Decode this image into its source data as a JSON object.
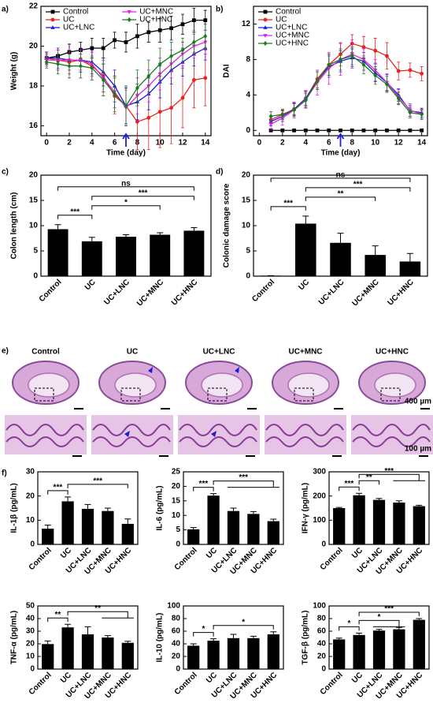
{
  "chart_data": [
    {
      "panel": "a)",
      "type": "line",
      "xlabel": "Time (day)",
      "ylabel": "Weight (g)",
      "x": [
        0,
        1,
        2,
        3,
        4,
        5,
        6,
        7,
        8,
        9,
        10,
        11,
        12,
        13,
        14
      ],
      "xlim": [
        -0.5,
        14.5
      ],
      "xticks": [
        0,
        2,
        4,
        6,
        8,
        10,
        12,
        14
      ],
      "ylim": [
        15.5,
        22
      ],
      "yticks": [
        16,
        18,
        20,
        22
      ],
      "legend": "top",
      "series": [
        {
          "name": "Control",
          "color": "#000000",
          "marker": "square",
          "values": [
            19.4,
            19.5,
            19.7,
            19.8,
            19.9,
            19.9,
            20.3,
            20.2,
            20.5,
            20.7,
            20.8,
            20.9,
            21.1,
            21.3,
            21.3
          ],
          "errors": [
            0.3,
            0.3,
            0.4,
            0.4,
            0.5,
            0.5,
            0.4,
            0.5,
            0.6,
            0.5,
            0.6,
            0.6,
            0.5,
            0.6,
            0.5
          ]
        },
        {
          "name": "UC",
          "color": "#e8221e",
          "marker": "circle",
          "values": [
            19.4,
            19.3,
            19.2,
            19.3,
            19.0,
            18.5,
            17.5,
            17.0,
            16.2,
            16.4,
            16.7,
            16.9,
            17.4,
            18.3,
            18.4
          ],
          "errors": [
            0.3,
            0.5,
            0.6,
            0.6,
            0.7,
            0.8,
            0.9,
            1.0,
            1.4,
            1.6,
            1.8,
            1.8,
            1.5,
            1.4,
            1.4
          ]
        },
        {
          "name": "UC+LNC",
          "color": "#1c1cd6",
          "marker": "triangle-up",
          "values": [
            19.4,
            19.4,
            19.3,
            19.3,
            19.2,
            18.7,
            18.0,
            17.0,
            17.2,
            17.6,
            18.2,
            18.8,
            19.2,
            19.6,
            19.9
          ],
          "errors": [
            0.3,
            0.5,
            0.5,
            0.6,
            0.6,
            0.7,
            0.8,
            0.9,
            0.9,
            0.8,
            0.8,
            0.7,
            0.7,
            0.6,
            0.6
          ]
        },
        {
          "name": "UC+MNC",
          "color": "#e020e0",
          "marker": "triangle-down",
          "values": [
            19.3,
            19.3,
            19.3,
            19.3,
            19.1,
            18.4,
            17.7,
            16.9,
            17.5,
            18.0,
            18.6,
            19.1,
            19.6,
            20.0,
            20.2
          ],
          "errors": [
            0.3,
            0.5,
            0.5,
            0.5,
            0.6,
            0.7,
            0.8,
            0.9,
            0.9,
            0.8,
            0.8,
            0.7,
            0.6,
            0.6,
            0.6
          ]
        },
        {
          "name": "UC+HNC",
          "color": "#1a7a1a",
          "marker": "diamond",
          "values": [
            19.2,
            19.1,
            19.0,
            19.0,
            18.9,
            18.3,
            17.6,
            17.0,
            17.9,
            18.5,
            19.1,
            19.5,
            19.8,
            20.2,
            20.5
          ],
          "errors": [
            0.3,
            0.5,
            0.6,
            0.6,
            0.6,
            0.8,
            0.9,
            1.0,
            0.9,
            0.8,
            0.8,
            0.7,
            0.6,
            0.6,
            0.6
          ]
        }
      ]
    },
    {
      "panel": "b)",
      "type": "line",
      "xlabel": "Time (day)",
      "ylabel": "DAI",
      "x": [
        1,
        2,
        3,
        4,
        5,
        6,
        7,
        8,
        9,
        10,
        11,
        12,
        13,
        14
      ],
      "xlim": [
        -0.5,
        14.5
      ],
      "xticks": [
        0,
        2,
        4,
        6,
        8,
        10,
        12,
        14
      ],
      "ylim": [
        -0.6,
        14
      ],
      "yticks": [
        0,
        4,
        8,
        12
      ],
      "legend": "upper left",
      "series": [
        {
          "name": "Control",
          "color": "#000000",
          "marker": "square",
          "values": [
            0,
            0,
            0,
            0,
            0,
            0,
            0,
            0,
            0,
            0,
            0,
            0,
            0,
            0
          ]
        },
        {
          "name": "UC",
          "color": "#e8221e",
          "marker": "circle",
          "values": [
            1.2,
            1.8,
            2.4,
            3.6,
            5.8,
            7.4,
            8.6,
            9.8,
            9.4,
            9.0,
            8.4,
            6.7,
            6.8,
            6.4
          ],
          "errors": [
            0.4,
            0.5,
            0.6,
            0.8,
            1.0,
            1.2,
            1.3,
            1.0,
            1.2,
            1.4,
            1.5,
            1.0,
            0.8,
            0.8
          ]
        },
        {
          "name": "UC+LNC",
          "color": "#1c1cd6",
          "marker": "triangle-up",
          "values": [
            1.0,
            1.6,
            2.4,
            3.6,
            5.6,
            7.2,
            7.8,
            8.2,
            7.8,
            6.5,
            5.4,
            4.0,
            2.2,
            2.0
          ],
          "errors": [
            0.5,
            0.6,
            0.7,
            0.8,
            1.0,
            1.2,
            1.2,
            1.0,
            1.0,
            1.0,
            0.9,
            0.7,
            0.6,
            0.5
          ]
        },
        {
          "name": "UC+MNC",
          "color": "#e020e0",
          "marker": "triangle-down",
          "values": [
            0.7,
            1.4,
            2.3,
            3.5,
            5.4,
            7.0,
            8.0,
            8.6,
            8.0,
            6.8,
            5.4,
            3.8,
            2.3,
            1.8
          ],
          "errors": [
            0.6,
            0.8,
            0.9,
            1.0,
            1.4,
            1.8,
            1.8,
            1.6,
            1.2,
            1.2,
            1.0,
            0.8,
            0.7,
            0.6
          ]
        },
        {
          "name": "UC+HNC",
          "color": "#1a7a1a",
          "marker": "diamond",
          "values": [
            1.6,
            1.8,
            2.3,
            3.4,
            5.6,
            7.4,
            8.0,
            8.4,
            7.4,
            6.2,
            5.2,
            3.6,
            2.0,
            1.8
          ],
          "errors": [
            0.5,
            0.6,
            0.7,
            0.8,
            1.0,
            1.2,
            1.2,
            1.0,
            1.0,
            1.0,
            0.9,
            0.7,
            0.6,
            0.5
          ]
        }
      ]
    },
    {
      "panel": "c)",
      "type": "bar",
      "ylabel": "Colon length (cm)",
      "color": "#000000",
      "categories": [
        "Control",
        "UC",
        "UC+LNC",
        "UC+MNC",
        "UC+HNC"
      ],
      "values": [
        9.3,
        6.9,
        7.8,
        8.2,
        9.0
      ],
      "errors": [
        0.9,
        0.8,
        0.4,
        0.4,
        0.6
      ],
      "ylim": [
        0,
        20
      ],
      "yticks": [
        0,
        5,
        10,
        15,
        20
      ],
      "brackets": [
        {
          "text": "***",
          "between": [
            "Control",
            "UC"
          ]
        },
        {
          "text": "*",
          "between": [
            "UC",
            "UC+MNC"
          ]
        },
        {
          "text": "***",
          "between": [
            "UC",
            "UC+HNC"
          ]
        },
        {
          "text": "ns",
          "between": [
            "Control",
            "UC+HNC"
          ]
        }
      ]
    },
    {
      "panel": "d)",
      "type": "bar",
      "ylabel": "Colonic damage score",
      "color": "#000000",
      "categories": [
        "Control",
        "UC",
        "UC+LNC",
        "UC+MNC",
        "UC+HNC"
      ],
      "values": [
        0.1,
        10.4,
        6.6,
        4.2,
        2.9
      ],
      "errors": [
        0,
        1.5,
        1.9,
        1.8,
        1.6
      ],
      "ylim": [
        0,
        20
      ],
      "yticks": [
        0,
        5,
        10,
        15,
        20
      ],
      "brackets": [
        {
          "text": "***",
          "between": [
            "Control",
            "UC"
          ]
        },
        {
          "text": "**",
          "between": [
            "UC",
            "UC+MNC"
          ]
        },
        {
          "text": "***",
          "between": [
            "UC",
            "UC+HNC"
          ]
        },
        {
          "text": "ns",
          "between": [
            "Control",
            "UC+HNC"
          ]
        }
      ]
    },
    {
      "panel": "f)",
      "type": "bar",
      "ylabel": "IL-1β (pg/mL)",
      "color": "#000000",
      "categories": [
        "Control",
        "UC",
        "UC+LNC",
        "UC+MNC",
        "UC+HNC"
      ],
      "values": [
        6.5,
        17.8,
        14.7,
        13.8,
        8.5
      ],
      "errors": [
        1.5,
        1.8,
        1.8,
        1.2,
        2.0
      ],
      "ylim": [
        0,
        30
      ],
      "yticks": [
        0,
        10,
        20,
        30
      ],
      "brackets": [
        {
          "text": "***",
          "between": [
            "Control",
            "UC"
          ]
        },
        {
          "text": "***",
          "between": [
            "UC",
            "UC+HNC"
          ]
        }
      ]
    },
    {
      "type": "bar",
      "ylabel": "IL-6 (pg/mL)",
      "color": "#000000",
      "categories": [
        "Control",
        "UC",
        "UC+LNC",
        "UC+MNC",
        "UC+HNC"
      ],
      "values": [
        5.2,
        16.8,
        11.5,
        10.5,
        8.0
      ],
      "errors": [
        0.6,
        0.7,
        1.0,
        0.8,
        0.7
      ],
      "ylim": [
        0,
        25
      ],
      "yticks": [
        0,
        5,
        10,
        15,
        20,
        25
      ],
      "brackets": [
        {
          "text": "***",
          "between": [
            "Control",
            "UC"
          ]
        },
        {
          "text": "***",
          "between": [
            "UC",
            "UC+LNC",
            "UC+MNC",
            "UC+HNC"
          ]
        }
      ]
    },
    {
      "type": "bar",
      "ylabel": "IFN-γ (pg/mL)",
      "color": "#000000",
      "categories": [
        "Control",
        "UC",
        "UC+LNC",
        "UC+MNC",
        "UC+HNC"
      ],
      "values": [
        150,
        203,
        184,
        173,
        158
      ],
      "errors": [
        3,
        8,
        6,
        7,
        4
      ],
      "ylim": [
        0,
        300
      ],
      "yticks": [
        0,
        100,
        200,
        300
      ],
      "brackets": [
        {
          "text": "***",
          "between": [
            "Control",
            "UC"
          ]
        },
        {
          "text": "**",
          "between": [
            "UC",
            "UC+LNC"
          ]
        },
        {
          "text": "***",
          "between": [
            "UC",
            "UC+MNC",
            "UC+HNC"
          ]
        }
      ]
    },
    {
      "type": "bar",
      "ylabel": "TNF-α (pg/mL)",
      "color": "#000000",
      "categories": [
        "Control",
        "UC",
        "UC+LNC",
        "UC+MNC",
        "UC+HNC"
      ],
      "values": [
        19.8,
        33,
        27.5,
        25,
        20.8
      ],
      "errors": [
        2.5,
        2.5,
        6,
        1.5,
        1.2
      ],
      "ylim": [
        0,
        50
      ],
      "yticks": [
        0,
        10,
        20,
        30,
        40,
        50
      ],
      "brackets": [
        {
          "text": "**",
          "between": [
            "Control",
            "UC"
          ]
        },
        {
          "text": "**",
          "between": [
            "UC",
            "UC+MNC",
            "UC+HNC"
          ]
        }
      ]
    },
    {
      "type": "bar",
      "ylabel": "IL-10 (pg/mL)",
      "color": "#000000",
      "categories": [
        "Control",
        "UC",
        "UC+LNC",
        "UC+MNC",
        "UC+HNC"
      ],
      "values": [
        37,
        45,
        49,
        49,
        55
      ],
      "errors": [
        3,
        3,
        6,
        3,
        4
      ],
      "ylim": [
        0,
        100
      ],
      "yticks": [
        0,
        20,
        40,
        60,
        80,
        100
      ],
      "brackets": [
        {
          "text": "*",
          "between": [
            "Control",
            "UC"
          ]
        },
        {
          "text": "*",
          "between": [
            "UC",
            "UC+HNC"
          ]
        }
      ]
    },
    {
      "type": "bar",
      "ylabel": "TGF-β (pg/mL)",
      "color": "#000000",
      "categories": [
        "Control",
        "UC",
        "UC+LNC",
        "UC+MNC",
        "UC+HNC"
      ],
      "values": [
        47,
        54,
        61,
        63,
        78
      ],
      "errors": [
        2,
        3,
        2,
        3,
        2
      ],
      "ylim": [
        0,
        100
      ],
      "yticks": [
        0,
        20,
        40,
        60,
        80,
        100
      ],
      "brackets": [
        {
          "text": "*",
          "between": [
            "Control",
            "UC"
          ]
        },
        {
          "text": "*",
          "between": [
            "UC",
            "UC+LNC",
            "UC+MNC"
          ]
        },
        {
          "text": "***",
          "between": [
            "UC",
            "UC+HNC"
          ]
        }
      ]
    }
  ],
  "histology": {
    "panel": "e)",
    "labels": [
      "Control",
      "UC",
      "UC+LNC",
      "UC+MNC",
      "UC+HNC"
    ],
    "scale_bars": [
      "400 µm",
      "100 µm"
    ]
  }
}
